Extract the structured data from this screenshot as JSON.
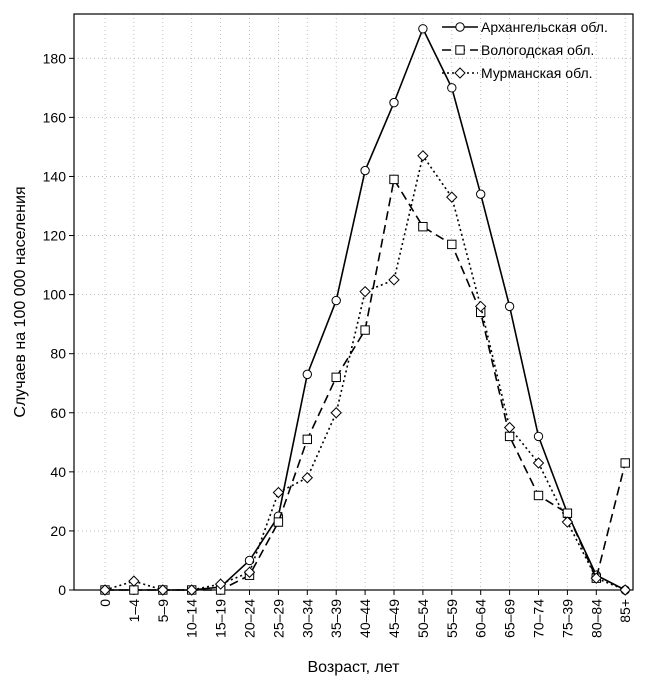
{
  "chart_data": {
    "type": "line",
    "xlabel": "Возраст, лет",
    "ylabel": "Случаев на 100 000 населения",
    "categories": [
      "0",
      "1–4",
      "5–9",
      "10–14",
      "15–19",
      "20–24",
      "25–29",
      "30–34",
      "35–39",
      "40–44",
      "45–49",
      "50–54",
      "55–59",
      "60–64",
      "65–69",
      "70–74",
      "75–39",
      "80–84",
      "85+"
    ],
    "yticks": [
      "0",
      "20",
      "40",
      "60",
      "80",
      "100",
      "120",
      "140",
      "160",
      "180"
    ],
    "ylim": [
      0,
      195
    ],
    "grid": true,
    "legend_position": "top-right",
    "series": [
      {
        "name": "Архангельская обл.",
        "line_style": "solid",
        "marker": "circle",
        "color": "#000000",
        "values": [
          0,
          0,
          0,
          0,
          1,
          10,
          25,
          73,
          98,
          142,
          165,
          190,
          170,
          134,
          96,
          52,
          26,
          5,
          0
        ]
      },
      {
        "name": "Вологодская обл.",
        "line_style": "dashed",
        "marker": "square",
        "color": "#000000",
        "values": [
          0,
          0,
          0,
          0,
          0,
          5,
          23,
          51,
          72,
          88,
          139,
          123,
          117,
          94,
          52,
          32,
          26,
          4,
          43
        ]
      },
      {
        "name": "Мурманская обл.",
        "line_style": "dotted",
        "marker": "diamond",
        "color": "#000000",
        "values": [
          0,
          3,
          0,
          0,
          2,
          6,
          33,
          38,
          60,
          101,
          105,
          147,
          133,
          96,
          55,
          43,
          23,
          4,
          0
        ]
      }
    ]
  }
}
